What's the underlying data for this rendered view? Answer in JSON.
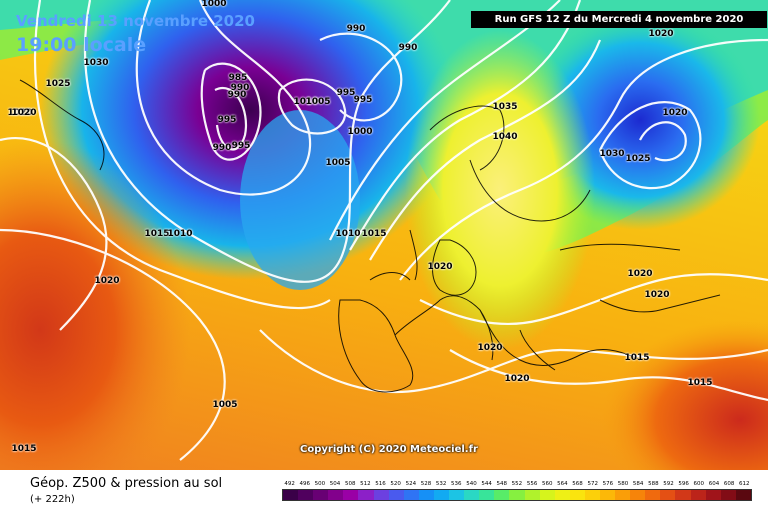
{
  "header": {
    "date": "Vendredi 13 novembre 2020",
    "time": "19:00 locale",
    "run": "Run GFS 12 Z du Mercredi 4 novembre 2020",
    "copyright": "Copyright (C) 2020 Meteociel.fr"
  },
  "footer": {
    "title": "Géop. Z500 & pression au sol",
    "subtitle": "(+ 222h)"
  },
  "scale": {
    "labels": [
      "492",
      "496",
      "500",
      "504",
      "508",
      "512",
      "516",
      "520",
      "524",
      "528",
      "532",
      "536",
      "540",
      "544",
      "548",
      "552",
      "556",
      "560",
      "564",
      "568",
      "572",
      "576",
      "580",
      "584",
      "588",
      "592",
      "596",
      "600",
      "604",
      "608",
      "612"
    ],
    "colors": [
      "#3a0048",
      "#50005e",
      "#680074",
      "#82008c",
      "#9a00a6",
      "#8c20c8",
      "#6c40e0",
      "#4a5aee",
      "#2f74f4",
      "#1690f6",
      "#12aaf2",
      "#1cc4e4",
      "#2ad8c4",
      "#38e49a",
      "#58ec68",
      "#86f040",
      "#b0f22c",
      "#d6f41c",
      "#eef016",
      "#fae40e",
      "#fcd00a",
      "#fcb808",
      "#fa9e08",
      "#f6840a",
      "#f06a0e",
      "#e45014",
      "#d23818",
      "#bc241a",
      "#a0141a",
      "#820c16",
      "#5a0810"
    ]
  },
  "isobars": [
    "1000",
    "990",
    "990",
    "1020",
    "1030",
    "1025",
    "1020",
    "985",
    "990",
    "995",
    "990",
    "995",
    "1010",
    "1005",
    "995",
    "995",
    "1000",
    "990",
    "1030",
    "1005",
    "1035",
    "1040",
    "1025",
    "1020",
    "1015",
    "1010",
    "1010",
    "1015",
    "1020",
    "1020",
    "1020",
    "1020",
    "1020",
    "1020",
    "1015",
    "1015",
    "1020",
    "1005",
    "1015"
  ]
}
